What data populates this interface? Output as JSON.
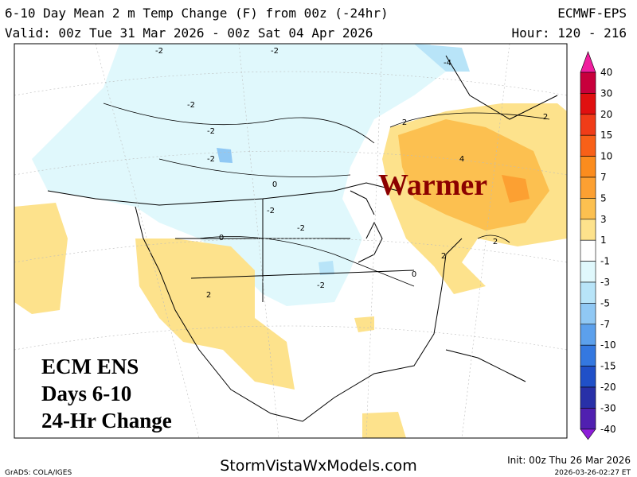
{
  "header": {
    "title": "6-10 Day Mean 2 m Temp Change (F) from 00z (-24hr)",
    "model": "ECMWF-EPS",
    "valid": "Valid: 00z Tue 31 Mar 2026 - 00z Sat 04 Apr 2026",
    "hours": "Hour: 120 - 216"
  },
  "colorbar": {
    "labels": [
      40,
      30,
      20,
      15,
      10,
      7,
      5,
      3,
      1,
      -1,
      -3,
      -5,
      -7,
      -10,
      -15,
      -20,
      -30,
      -40
    ],
    "colors": [
      "#f01e9e",
      "#c8003c",
      "#e01010",
      "#f03c18",
      "#f86018",
      "#fb8c1e",
      "#fca032",
      "#fcc050",
      "#fde28c",
      "#ffffff",
      "#e0f8fc",
      "#b8e4f8",
      "#90c8f4",
      "#5ca0ec",
      "#3478e0",
      "#2050c8",
      "#2830a8",
      "#5020b0",
      "#8c1ed8"
    ]
  },
  "overlay": {
    "label": "Warmer",
    "lines": [
      "ECM ENS",
      "Days 6-10",
      "24-Hr Change"
    ]
  },
  "contour_labels": [
    "-2",
    "-2",
    "-2",
    "-4",
    "-2",
    "-2",
    "2",
    "4",
    "2",
    "-2",
    "-2",
    "0",
    "0",
    "2",
    "2",
    "-2",
    "0",
    "2"
  ],
  "footer": {
    "credit": "GrADS: COLA/IGES",
    "site": "StormVistaWxModels.com",
    "init": "Init: 00z Thu 26 Mar 2026",
    "timestamp": "2026-03-26-02:27 ET"
  }
}
